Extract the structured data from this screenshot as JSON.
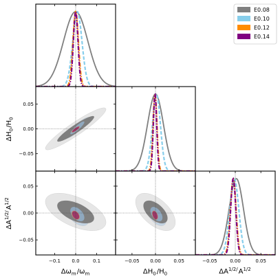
{
  "chart_data": {
    "type": "corner",
    "parameters": [
      "omega_m",
      "H0",
      "A_half"
    ],
    "axis_labels": {
      "omega_m": "Δω_m/ω_m",
      "H0": "ΔH_0/H_0",
      "A_half": "ΔA^1/2/A^1/2"
    },
    "axis_ranges": {
      "omega_m": [
        -0.19,
        0.19
      ],
      "H0": [
        -0.085,
        0.085
      ],
      "A_half": [
        -0.078,
        0.078
      ]
    },
    "ticks": {
      "omega_m": [
        -0.1,
        0.0,
        0.1
      ],
      "H0": [
        -0.05,
        0.0,
        0.05
      ],
      "A_half": [
        -0.05,
        0.0,
        0.05
      ]
    },
    "tick_labels": {
      "omega_m": [
        "−0.1",
        "0.0",
        "0.1"
      ],
      "H0": [
        "−0.05",
        "0.00",
        "0.05"
      ],
      "A_half": [
        "−0.05",
        "0.00",
        "0.05"
      ]
    },
    "legend_position": "top-right",
    "series": [
      {
        "name": "E0.08",
        "color": "#7f7f7f",
        "dash": "solid",
        "fill1": "#7f7f7f",
        "fill2": "#e6e6e6",
        "sigma": {
          "omega_m": 0.058,
          "H0": 0.017,
          "A_half": 0.014
        },
        "mean": {
          "omega_m": 0.0,
          "H0": 0.0,
          "A_half": 0.002
        },
        "corr": {
          "omega_m|H0": 0.93,
          "omega_m|A_half": -0.55,
          "H0|A_half": -0.55
        }
      },
      {
        "name": "E0.10",
        "color": "#87ceeb",
        "dash": "dashed",
        "fill1": "#8fa8bf",
        "fill2": "#c3d3e2",
        "sigma": {
          "omega_m": 0.022,
          "H0": 0.0085,
          "A_half": 0.0088
        },
        "mean": {
          "omega_m": 0.008,
          "H0": 0.002,
          "A_half": -0.002
        },
        "corr": {
          "omega_m|H0": 0.9,
          "omega_m|A_half": -0.5,
          "H0|A_half": -0.5
        }
      },
      {
        "name": "E0.12",
        "color": "#ff8c00",
        "dash": "dashdot",
        "fill1": "#c49070",
        "fill2": "#e6c6b4",
        "sigma": {
          "omega_m": 0.013,
          "H0": 0.0042,
          "A_half": 0.0055
        },
        "mean": {
          "omega_m": 0.0,
          "H0": -0.001,
          "A_half": -0.004
        },
        "corr": {
          "omega_m|H0": 0.85,
          "omega_m|A_half": -0.4,
          "H0|A_half": -0.4
        }
      },
      {
        "name": "E0.14",
        "color": "#800080",
        "dash": "dashdot",
        "fill1": "#9e3868",
        "fill2": "#d7a8b8",
        "sigma": {
          "omega_m": 0.011,
          "H0": 0.0036,
          "A_half": 0.005
        },
        "mean": {
          "omega_m": 0.0,
          "H0": -0.001,
          "A_half": -0.004
        },
        "corr": {
          "omega_m|H0": 0.85,
          "omega_m|A_half": -0.4,
          "H0|A_half": -0.4
        }
      }
    ]
  }
}
